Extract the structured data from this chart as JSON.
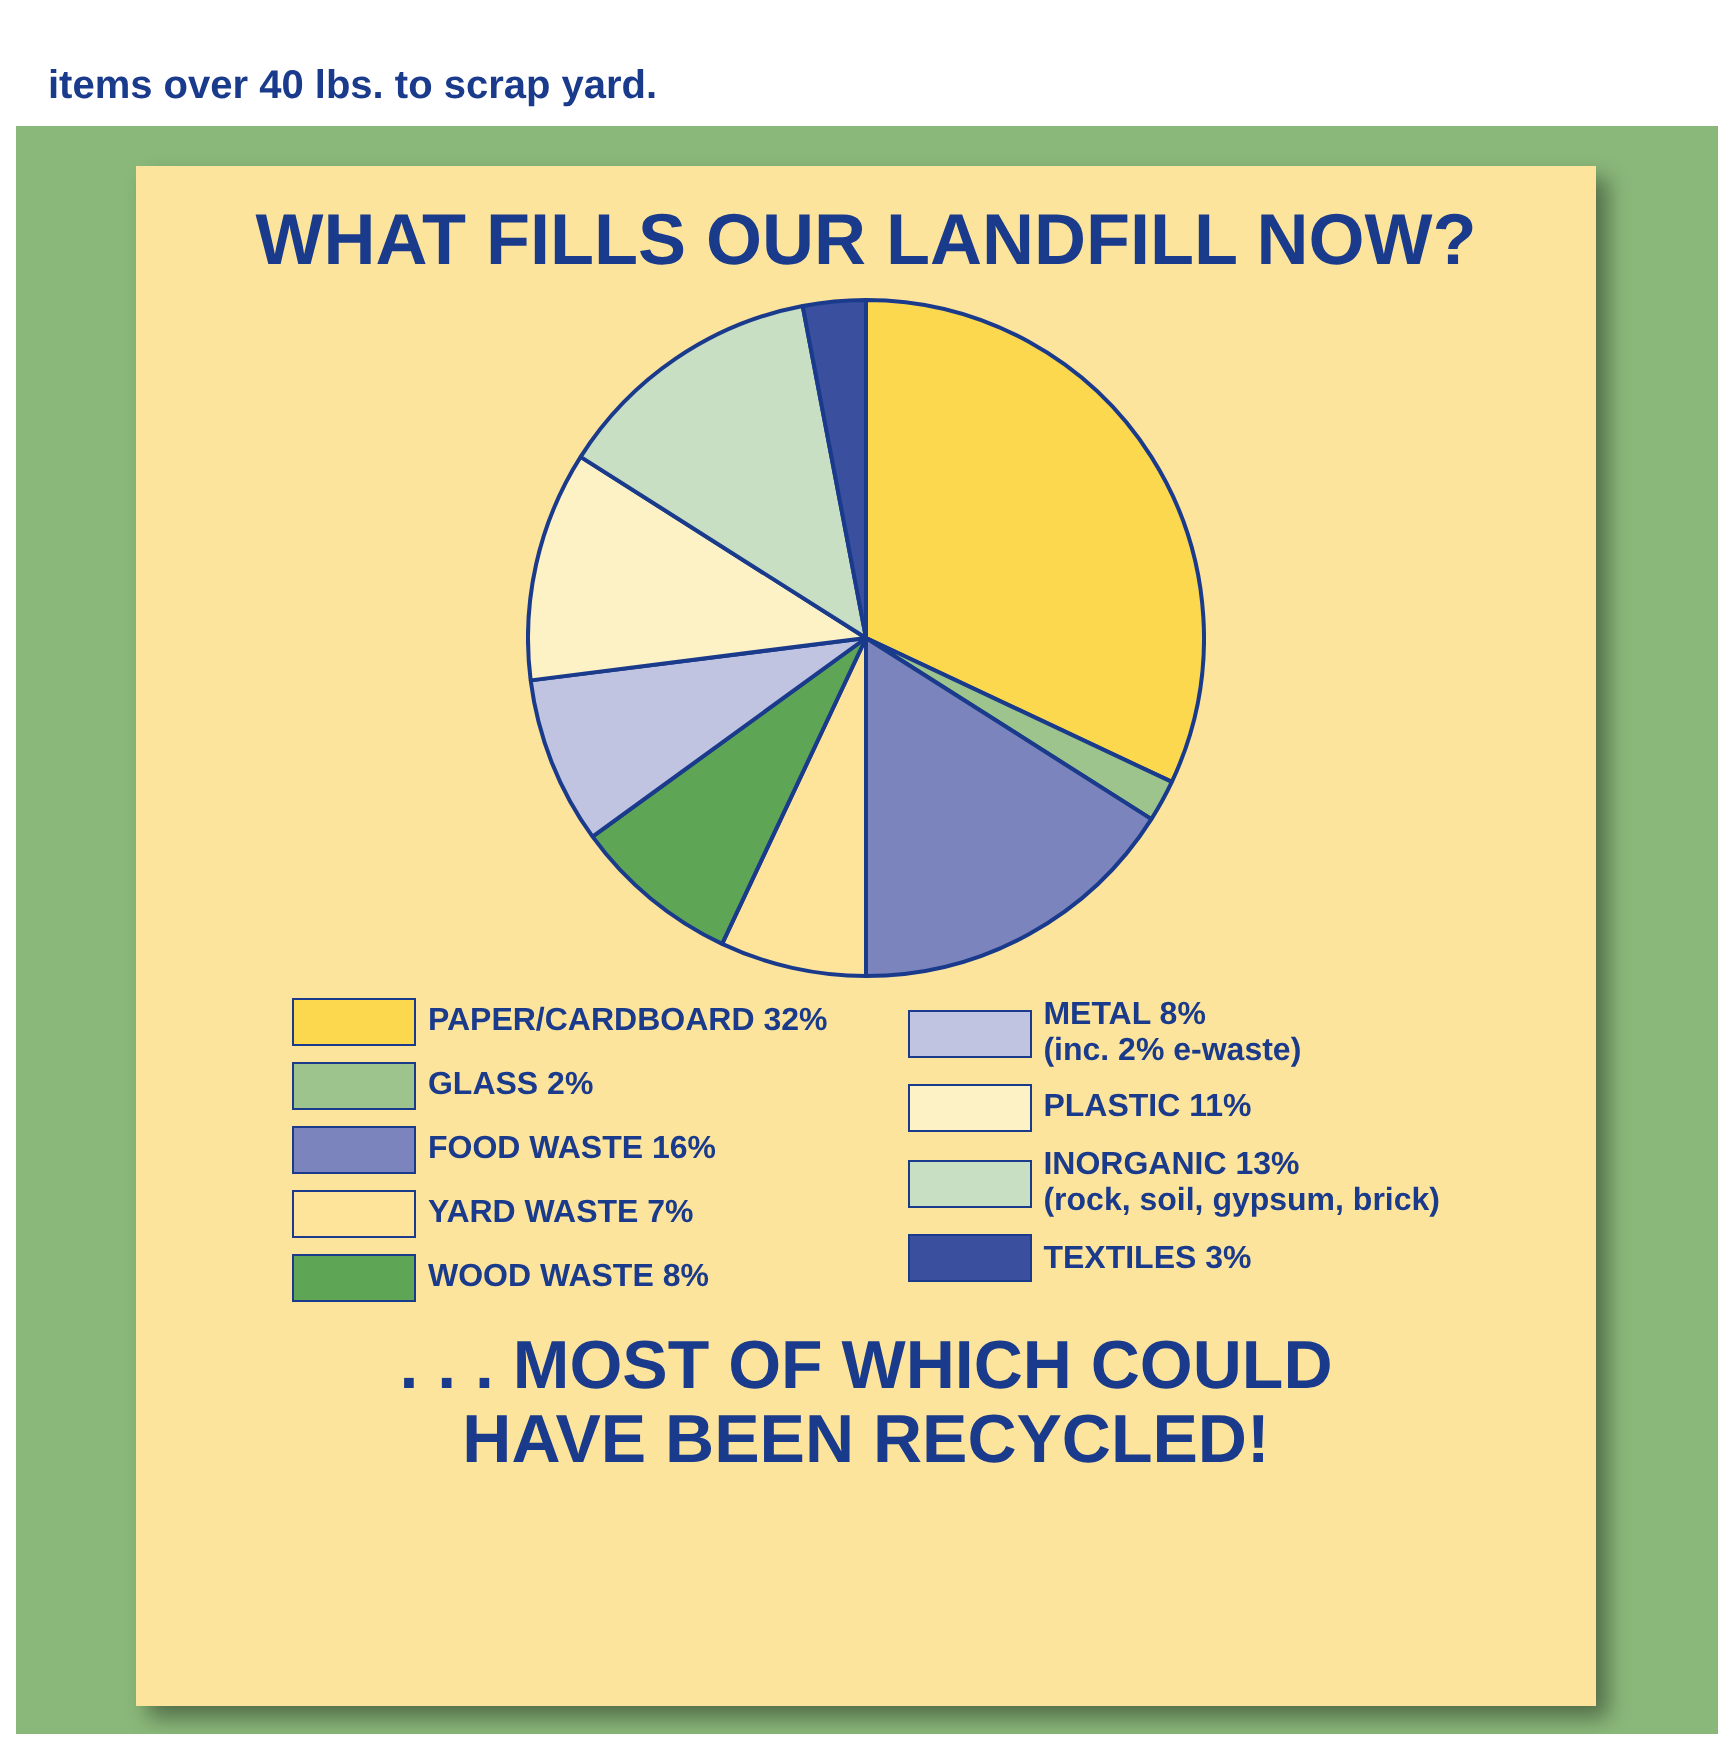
{
  "chart_data": {
    "type": "pie",
    "title": "WHAT FILLS OUR LANDFILL NOW?",
    "categories": [
      "PAPER/CARDBOARD 32%",
      "GLASS 2%",
      "FOOD WASTE 16%",
      "YARD WASTE 7%",
      "WOOD WASTE 8%",
      "METAL 8%\n(inc. 2% e-waste)",
      "PLASTIC 11%",
      "INORGANIC 13%\n(rock, soil, gypsum, brick)",
      "TEXTILES 3%"
    ],
    "values": [
      32,
      2,
      16,
      7,
      8,
      8,
      11,
      13,
      3
    ],
    "colors": [
      "#fcd84e",
      "#9cc48c",
      "#7b84bd",
      "#fde49a",
      "#5ea556",
      "#c0c4e0",
      "#fdf1c6",
      "#c8dfc4",
      "#3a4f9e"
    ],
    "legend": "bottom",
    "annotations": [
      "items over 40 lbs. to scrap yard.",
      ". . . MOST OF WHICH COULD HAVE BEEN RECYCLED!"
    ]
  }
}
